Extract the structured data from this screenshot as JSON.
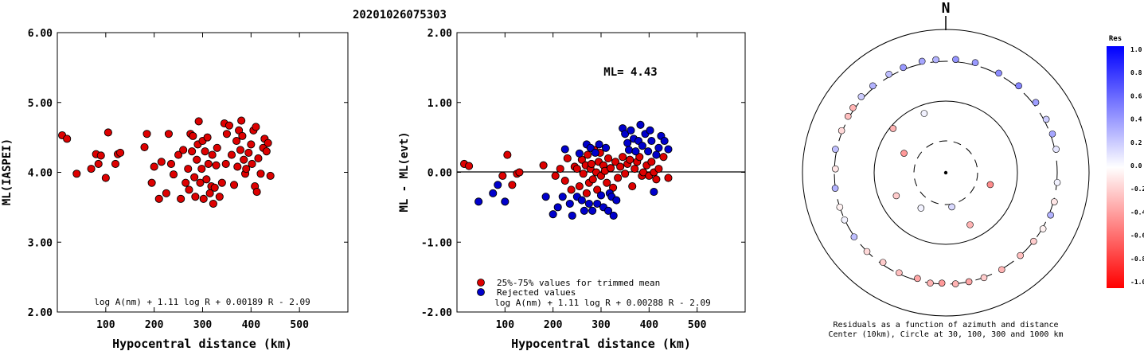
{
  "title": "20201026075303",
  "chart_data": [
    {
      "type": "scatter",
      "xlabel": "Hypocentral distance (km)",
      "ylabel": "ML(IASPEI)",
      "xlim": [
        0,
        600
      ],
      "ylim": [
        2.0,
        6.0
      ],
      "xticks": [
        "100",
        "200",
        "300",
        "400",
        "500"
      ],
      "yticks": [
        "2.00",
        "3.00",
        "4.00",
        "5.00",
        "6.00"
      ],
      "formula": "log A(nm) + 1.11 log R + 0.00189 R - 2.09",
      "point_color": "#dd0000",
      "points": [
        [
          10,
          4.53
        ],
        [
          20,
          4.48
        ],
        [
          40,
          3.98
        ],
        [
          70,
          4.05
        ],
        [
          80,
          4.26
        ],
        [
          85,
          4.12
        ],
        [
          90,
          4.24
        ],
        [
          100,
          3.92
        ],
        [
          105,
          4.57
        ],
        [
          120,
          4.12
        ],
        [
          125,
          4.26
        ],
        [
          130,
          4.28
        ],
        [
          180,
          4.36
        ],
        [
          185,
          4.55
        ],
        [
          195,
          3.85
        ],
        [
          200,
          4.08
        ],
        [
          210,
          3.62
        ],
        [
          215,
          4.15
        ],
        [
          225,
          3.7
        ],
        [
          230,
          4.55
        ],
        [
          235,
          4.12
        ],
        [
          240,
          3.97
        ],
        [
          250,
          4.25
        ],
        [
          255,
          3.62
        ],
        [
          260,
          4.32
        ],
        [
          265,
          3.85
        ],
        [
          270,
          4.05
        ],
        [
          272,
          3.75
        ],
        [
          275,
          4.55
        ],
        [
          278,
          4.3
        ],
        [
          280,
          4.52
        ],
        [
          283,
          3.93
        ],
        [
          285,
          3.65
        ],
        [
          288,
          4.18
        ],
        [
          290,
          4.4
        ],
        [
          292,
          4.73
        ],
        [
          295,
          3.85
        ],
        [
          298,
          4.05
        ],
        [
          300,
          4.45
        ],
        [
          302,
          3.62
        ],
        [
          305,
          4.3
        ],
        [
          308,
          3.9
        ],
        [
          310,
          4.5
        ],
        [
          312,
          4.12
        ],
        [
          315,
          3.7
        ],
        [
          318,
          3.8
        ],
        [
          320,
          4.25
        ],
        [
          322,
          3.55
        ],
        [
          325,
          3.78
        ],
        [
          328,
          4.1
        ],
        [
          330,
          4.35
        ],
        [
          335,
          3.65
        ],
        [
          340,
          3.85
        ],
        [
          345,
          4.7
        ],
        [
          348,
          4.12
        ],
        [
          350,
          4.55
        ],
        [
          355,
          4.67
        ],
        [
          360,
          4.25
        ],
        [
          365,
          3.82
        ],
        [
          370,
          4.45
        ],
        [
          372,
          4.08
        ],
        [
          375,
          4.6
        ],
        [
          378,
          4.32
        ],
        [
          380,
          4.74
        ],
        [
          382,
          4.52
        ],
        [
          385,
          4.18
        ],
        [
          388,
          3.98
        ],
        [
          390,
          4.05
        ],
        [
          395,
          4.28
        ],
        [
          400,
          4.4
        ],
        [
          402,
          4.12
        ],
        [
          405,
          4.6
        ],
        [
          408,
          3.8
        ],
        [
          410,
          4.65
        ],
        [
          412,
          3.72
        ],
        [
          415,
          4.2
        ],
        [
          420,
          3.98
        ],
        [
          425,
          4.35
        ],
        [
          428,
          4.48
        ],
        [
          432,
          4.3
        ],
        [
          435,
          4.42
        ],
        [
          440,
          3.95
        ]
      ]
    },
    {
      "type": "scatter",
      "xlabel": "Hypocentral distance (km)",
      "ylabel": "ML - ML(evt)",
      "xlim": [
        0,
        600
      ],
      "ylim": [
        -2.0,
        2.0
      ],
      "xticks": [
        "100",
        "200",
        "300",
        "400",
        "500"
      ],
      "yticks": [
        "-2.00",
        "-1.00",
        "0.00",
        "1.00",
        "2.00"
      ],
      "annotation": "ML= 4.43",
      "formula": "log A(nm) + 1.11 log R + 0.00288 R - 2.09",
      "legend": [
        {
          "label": "25%-75% values for trimmed mean",
          "color": "#dd0000"
        },
        {
          "label": "Rejected values",
          "color": "#0000cc"
        }
      ],
      "series": [
        {
          "name": "25%-75% values for trimmed mean",
          "color": "#dd0000",
          "points": [
            [
              15,
              0.12
            ],
            [
              25,
              0.09
            ],
            [
              95,
              -0.05
            ],
            [
              105,
              0.25
            ],
            [
              115,
              -0.18
            ],
            [
              125,
              -0.02
            ],
            [
              130,
              0.0
            ],
            [
              180,
              0.1
            ],
            [
              205,
              -0.05
            ],
            [
              215,
              0.05
            ],
            [
              225,
              -0.12
            ],
            [
              230,
              0.2
            ],
            [
              238,
              -0.25
            ],
            [
              245,
              0.08
            ],
            [
              250,
              0.05
            ],
            [
              255,
              -0.2
            ],
            [
              260,
              0.18
            ],
            [
              263,
              -0.02
            ],
            [
              268,
              0.1
            ],
            [
              270,
              -0.3
            ],
            [
              272,
              0.25
            ],
            [
              275,
              -0.15
            ],
            [
              278,
              0.05
            ],
            [
              280,
              0.12
            ],
            [
              283,
              -0.1
            ],
            [
              286,
              0.32
            ],
            [
              290,
              0.0
            ],
            [
              292,
              -0.25
            ],
            [
              295,
              0.15
            ],
            [
              298,
              0.28
            ],
            [
              300,
              -0.05
            ],
            [
              305,
              0.1
            ],
            [
              308,
              0.02
            ],
            [
              312,
              -0.15
            ],
            [
              315,
              0.2
            ],
            [
              320,
              0.06
            ],
            [
              325,
              -0.22
            ],
            [
              330,
              0.15
            ],
            [
              335,
              -0.08
            ],
            [
              340,
              0.08
            ],
            [
              345,
              0.22
            ],
            [
              350,
              -0.02
            ],
            [
              355,
              0.12
            ],
            [
              360,
              0.18
            ],
            [
              365,
              -0.2
            ],
            [
              370,
              0.05
            ],
            [
              375,
              0.15
            ],
            [
              380,
              0.22
            ],
            [
              385,
              -0.05
            ],
            [
              388,
              0.0
            ],
            [
              395,
              0.1
            ],
            [
              400,
              -0.05
            ],
            [
              405,
              0.15
            ],
            [
              410,
              0.0
            ],
            [
              415,
              -0.1
            ],
            [
              420,
              0.05
            ],
            [
              430,
              0.22
            ],
            [
              440,
              -0.08
            ]
          ]
        },
        {
          "name": "Rejected values",
          "color": "#0000cc",
          "points": [
            [
              45,
              -0.42
            ],
            [
              75,
              -0.3
            ],
            [
              85,
              -0.18
            ],
            [
              100,
              -0.42
            ],
            [
              185,
              -0.35
            ],
            [
              200,
              -0.6
            ],
            [
              210,
              -0.5
            ],
            [
              220,
              -0.35
            ],
            [
              225,
              0.33
            ],
            [
              235,
              -0.45
            ],
            [
              240,
              -0.62
            ],
            [
              250,
              -0.35
            ],
            [
              255,
              0.27
            ],
            [
              260,
              -0.4
            ],
            [
              265,
              -0.55
            ],
            [
              270,
              0.4
            ],
            [
              275,
              -0.45
            ],
            [
              278,
              0.35
            ],
            [
              282,
              -0.55
            ],
            [
              288,
              0.28
            ],
            [
              292,
              -0.45
            ],
            [
              296,
              0.4
            ],
            [
              300,
              -0.33
            ],
            [
              305,
              -0.5
            ],
            [
              310,
              0.35
            ],
            [
              315,
              -0.55
            ],
            [
              318,
              -0.3
            ],
            [
              322,
              -0.35
            ],
            [
              326,
              -0.62
            ],
            [
              332,
              -0.4
            ],
            [
              345,
              0.63
            ],
            [
              350,
              0.55
            ],
            [
              355,
              0.42
            ],
            [
              358,
              0.32
            ],
            [
              362,
              0.6
            ],
            [
              368,
              0.48
            ],
            [
              372,
              0.3
            ],
            [
              378,
              0.45
            ],
            [
              382,
              0.68
            ],
            [
              386,
              0.38
            ],
            [
              392,
              0.55
            ],
            [
              398,
              0.3
            ],
            [
              402,
              0.6
            ],
            [
              405,
              0.45
            ],
            [
              410,
              -0.28
            ],
            [
              415,
              0.25
            ],
            [
              420,
              0.35
            ],
            [
              425,
              0.52
            ],
            [
              432,
              0.45
            ],
            [
              440,
              0.33
            ]
          ]
        }
      ]
    },
    {
      "type": "polar-scatter",
      "north_label": "N",
      "caption_line1": "Residuals as a function of azimuth and distance",
      "caption_line2": "Center (10km), Circle at 30, 100, 300 and 1000 km",
      "rings_km": [
        30,
        100,
        300,
        1000
      ],
      "colorbar": {
        "title": "Res",
        "ticks": [
          "1.0",
          "0.8",
          "0.6",
          "0.4",
          "0.2",
          "0.0",
          "-0.2",
          "-0.4",
          "-0.6",
          "-0.8",
          "-1.0"
        ],
        "max_color": "#0000ff",
        "zero_color": "#ffffff",
        "min_color": "#ff0000"
      },
      "points": [
        {
          "az": 5,
          "dist": 350,
          "res": 0.42
        },
        {
          "az": 15,
          "dist": 355,
          "res": 0.4
        },
        {
          "az": 28,
          "dist": 330,
          "res": 0.45
        },
        {
          "az": 40,
          "dist": 345,
          "res": 0.48
        },
        {
          "az": 52,
          "dist": 360,
          "res": 0.38
        },
        {
          "az": 62,
          "dist": 350,
          "res": 0.2
        },
        {
          "az": 70,
          "dist": 345,
          "res": 0.35
        },
        {
          "az": 78,
          "dist": 330,
          "res": 0.1
        },
        {
          "az": 95,
          "dist": 310,
          "res": 0.05
        },
        {
          "az": 105,
          "dist": 320,
          "res": -0.1
        },
        {
          "az": 112,
          "dist": 335,
          "res": 0.3
        },
        {
          "az": 120,
          "dist": 318,
          "res": -0.05
        },
        {
          "az": 128,
          "dist": 300,
          "res": -0.2
        },
        {
          "az": 138,
          "dist": 300,
          "res": -0.25
        },
        {
          "az": 150,
          "dist": 310,
          "res": -0.3
        },
        {
          "az": 160,
          "dist": 305,
          "res": -0.2
        },
        {
          "az": 168,
          "dist": 300,
          "res": -0.35
        },
        {
          "az": 175,
          "dist": 302,
          "res": -0.3
        },
        {
          "az": 182,
          "dist": 295,
          "res": -0.4
        },
        {
          "az": 188,
          "dist": 300,
          "res": -0.3
        },
        {
          "az": 195,
          "dist": 290,
          "res": -0.35
        },
        {
          "az": 205,
          "dist": 295,
          "res": -0.25
        },
        {
          "az": 215,
          "dist": 290,
          "res": -0.2
        },
        {
          "az": 225,
          "dist": 300,
          "res": -0.15
        },
        {
          "az": 235,
          "dist": 310,
          "res": 0.25
        },
        {
          "az": 245,
          "dist": 305,
          "res": 0.05
        },
        {
          "az": 252,
          "dist": 300,
          "res": -0.05
        },
        {
          "az": 262,
          "dist": 305,
          "res": 0.3
        },
        {
          "az": 272,
          "dist": 295,
          "res": -0.1
        },
        {
          "az": 282,
          "dist": 330,
          "res": 0.25
        },
        {
          "az": 292,
          "dist": 320,
          "res": -0.15
        },
        {
          "az": 300,
          "dist": 330,
          "res": -0.25
        },
        {
          "az": 305,
          "dist": 340,
          "res": -0.3
        },
        {
          "az": 312,
          "dist": 350,
          "res": 0.2
        },
        {
          "az": 320,
          "dist": 345,
          "res": 0.3
        },
        {
          "az": 330,
          "dist": 350,
          "res": 0.25
        },
        {
          "az": 338,
          "dist": 345,
          "res": 0.4
        },
        {
          "az": 348,
          "dist": 355,
          "res": 0.35
        },
        {
          "az": 355,
          "dist": 345,
          "res": 0.3
        },
        {
          "az": 310,
          "dist": 95,
          "res": -0.3
        },
        {
          "az": 340,
          "dist": 85,
          "res": 0.05
        },
        {
          "az": 295,
          "dist": 55,
          "res": -0.4
        },
        {
          "az": 170,
          "dist": 35,
          "res": 0.15
        },
        {
          "az": 215,
          "dist": 50,
          "res": 0.05
        },
        {
          "az": 105,
          "dist": 55,
          "res": -0.45
        },
        {
          "az": 155,
          "dist": 75,
          "res": -0.3
        },
        {
          "az": 245,
          "dist": 70,
          "res": -0.2
        }
      ]
    }
  ]
}
